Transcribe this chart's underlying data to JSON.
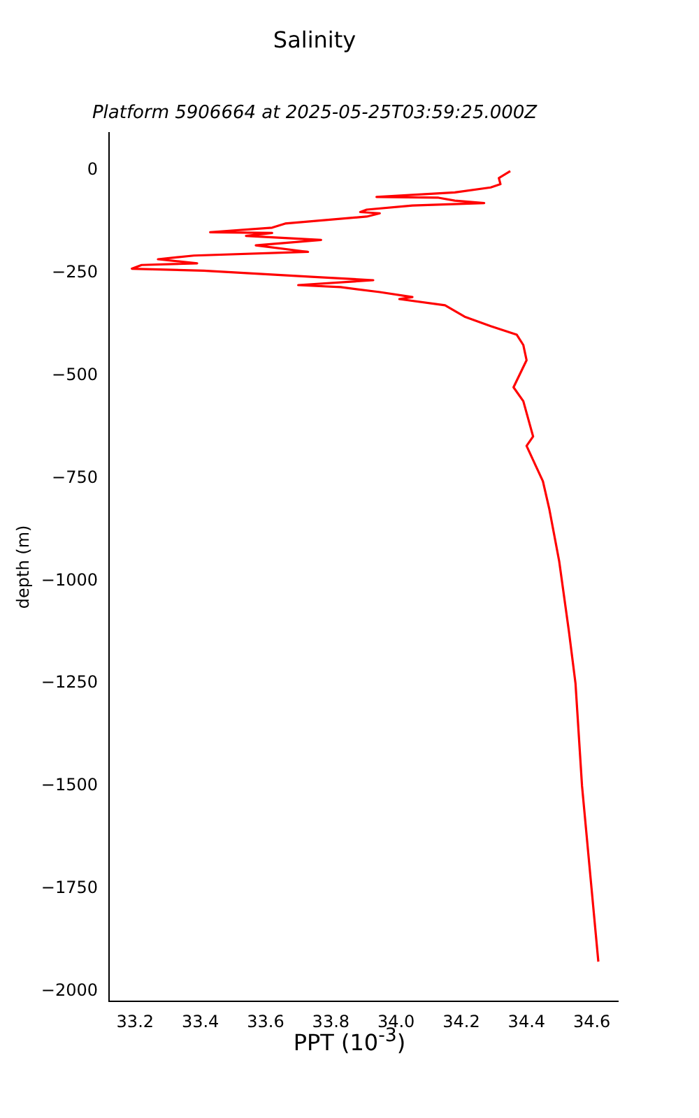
{
  "chart_data": {
    "type": "line",
    "title": "Salinity",
    "subtitle": "Platform 5906664 at 2025-05-25T03:59:25.000Z",
    "xlabel": "PPT (10$^{-3}$)",
    "ylabel": "depth (m)",
    "series": [
      {
        "color": "#ff0000",
        "x": [
          34.35,
          34.315,
          34.32,
          34.29,
          34.18,
          33.94,
          34.13,
          34.18,
          34.27,
          34.05,
          33.91,
          33.89,
          33.95,
          33.91,
          33.66,
          33.62,
          33.43,
          33.62,
          33.54,
          33.77,
          33.57,
          33.73,
          33.38,
          33.27,
          33.39,
          33.22,
          33.19,
          33.41,
          33.75,
          33.93,
          33.7,
          33.83,
          33.95,
          34.05,
          34.01,
          34.15,
          34.21,
          34.29,
          34.37,
          34.39,
          34.4,
          34.36,
          34.39,
          34.42,
          34.4,
          34.45,
          34.47,
          34.5,
          34.53,
          34.55,
          34.57,
          34.62
        ],
        "values": [
          -1,
          -18,
          -33,
          -41,
          -53,
          -64,
          -66,
          -73,
          -79,
          -85,
          -95,
          -101,
          -104,
          -112,
          -129,
          -139,
          -150,
          -152,
          -159,
          -169,
          -182,
          -198,
          -207,
          -216,
          -226,
          -230,
          -239,
          -244,
          -259,
          -267,
          -279,
          -284,
          -296,
          -308,
          -313,
          -328,
          -356,
          -379,
          -400,
          -425,
          -462,
          -528,
          -562,
          -648,
          -671,
          -757,
          -826,
          -952,
          -1124,
          -1250,
          -1500,
          -1928
        ]
      }
    ],
    "xlim": [
      33.12,
      34.68
    ],
    "ylim": [
      -2025,
      93
    ],
    "xticks": [
      33.2,
      33.4,
      33.6,
      33.8,
      {
        "value": 34,
        "label": "34.0"
      },
      34.2,
      34.4,
      34.6
    ],
    "yticks": [
      0,
      {
        "value": -250,
        "label": "−250"
      },
      {
        "value": -500,
        "label": "−500"
      },
      {
        "value": -750,
        "label": "−750"
      },
      {
        "value": -1000,
        "label": "−1000"
      },
      {
        "value": -1250,
        "label": "−1250"
      },
      {
        "value": -1500,
        "label": "−1500"
      },
      {
        "value": -1750,
        "label": "−1750"
      },
      {
        "value": -2000,
        "label": "−2000"
      }
    ]
  }
}
